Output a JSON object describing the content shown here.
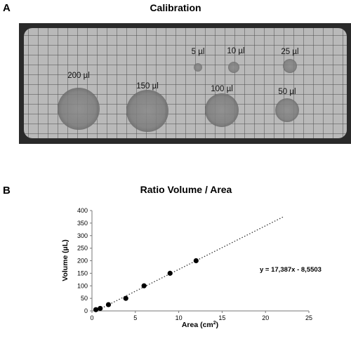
{
  "panel_a": {
    "letter": "A",
    "title": "Calibration",
    "spots": [
      {
        "label": "200 µl",
        "volume_ul": 200
      },
      {
        "label": "150 µl",
        "volume_ul": 150
      },
      {
        "label": "100 µl",
        "volume_ul": 100
      },
      {
        "label": "50 µl",
        "volume_ul": 50
      },
      {
        "label": "25 µl",
        "volume_ul": 25
      },
      {
        "label": "10 µl",
        "volume_ul": 10
      },
      {
        "label": "5 µl",
        "volume_ul": 5
      }
    ]
  },
  "panel_b": {
    "letter": "B"
  },
  "chart_data": {
    "type": "scatter",
    "title": "Ratio Volume / Area",
    "xlabel": "Area (cm",
    "xlabel_sup": "2",
    "xlabel_end": ")",
    "ylabel": "Volume (µL)",
    "xlim": [
      0,
      25
    ],
    "ylim": [
      0,
      400
    ],
    "x_ticks": [
      0,
      5,
      10,
      15,
      20,
      25
    ],
    "y_ticks": [
      0,
      50,
      100,
      150,
      200,
      250,
      300,
      350,
      400
    ],
    "points": [
      {
        "x": 0.45,
        "y": 5
      },
      {
        "x": 0.95,
        "y": 10
      },
      {
        "x": 1.9,
        "y": 25
      },
      {
        "x": 3.9,
        "y": 50
      },
      {
        "x": 6.0,
        "y": 100
      },
      {
        "x": 9.0,
        "y": 150
      },
      {
        "x": 12.0,
        "y": 200
      }
    ],
    "trendline": {
      "slope": 17.387,
      "intercept": -8.5503,
      "x_range": [
        0.5,
        22
      ],
      "style": "dotted"
    },
    "equation": "y = 17,387x - 8,5503",
    "grid": false,
    "marker_color": "#000000"
  }
}
